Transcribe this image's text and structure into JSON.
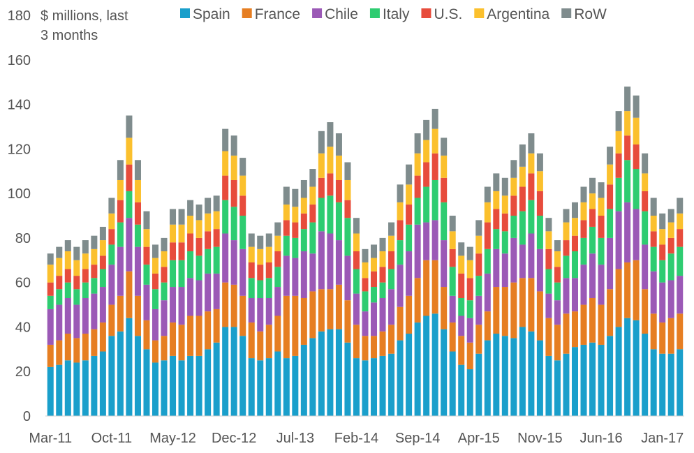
{
  "chart_data": {
    "type": "bar",
    "stacked": true,
    "unit_label": "$ millions, last 3 months",
    "y_range": [
      0,
      180
    ],
    "y_ticks": [
      0,
      20,
      40,
      60,
      80,
      100,
      120,
      140,
      160,
      180
    ],
    "grid": false,
    "legend_position": "top",
    "x_tick_labels": [
      {
        "index": 0,
        "label": "Mar-11"
      },
      {
        "index": 7,
        "label": "Oct-11"
      },
      {
        "index": 14,
        "label": "May-12"
      },
      {
        "index": 21,
        "label": "Dec-12"
      },
      {
        "index": 28,
        "label": "Jul-13"
      },
      {
        "index": 35,
        "label": "Feb-14"
      },
      {
        "index": 42,
        "label": "Sep-14"
      },
      {
        "index": 49,
        "label": "Apr-15"
      },
      {
        "index": 56,
        "label": "Nov-15"
      },
      {
        "index": 63,
        "label": "Jun-16"
      },
      {
        "index": 70,
        "label": "Jan-17"
      }
    ],
    "series": [
      {
        "name": "Spain",
        "color": "#1a9fcb",
        "values": [
          22,
          23,
          25,
          24,
          25,
          27,
          29,
          36,
          38,
          44,
          36,
          30,
          24,
          25,
          27,
          25,
          27,
          27,
          30,
          33,
          40,
          40,
          36,
          26,
          25,
          26,
          29,
          26,
          27,
          32,
          35,
          38,
          39,
          39,
          33,
          26,
          25,
          26,
          27,
          28,
          34,
          37,
          42,
          45,
          46,
          39,
          29,
          23,
          21,
          28,
          34,
          37,
          36,
          35,
          40,
          38,
          34,
          27,
          25,
          28,
          31,
          32,
          33,
          32,
          36,
          40,
          44,
          43,
          37,
          30,
          28,
          28,
          30
        ]
      },
      {
        "name": "France",
        "color": "#e67e22",
        "values": [
          10,
          11,
          12,
          11,
          12,
          12,
          13,
          14,
          16,
          21,
          18,
          13,
          10,
          11,
          15,
          16,
          18,
          18,
          17,
          15,
          20,
          19,
          18,
          16,
          13,
          15,
          16,
          28,
          27,
          21,
          21,
          19,
          18,
          20,
          19,
          15,
          11,
          10,
          11,
          13,
          15,
          17,
          20,
          25,
          24,
          19,
          13,
          13,
          12,
          13,
          13,
          21,
          22,
          25,
          22,
          24,
          22,
          17,
          16,
          18,
          16,
          18,
          20,
          18,
          21,
          26,
          25,
          27,
          20,
          16,
          14,
          16,
          16
        ]
      },
      {
        "name": "Chile",
        "color": "#9b59b6",
        "values": [
          16,
          16,
          16,
          15,
          16,
          16,
          16,
          18,
          22,
          24,
          22,
          16,
          14,
          16,
          16,
          17,
          17,
          16,
          17,
          16,
          22,
          20,
          21,
          11,
          15,
          12,
          13,
          18,
          17,
          21,
          17,
          26,
          25,
          20,
          20,
          14,
          11,
          15,
          15,
          16,
          19,
          20,
          24,
          17,
          18,
          21,
          12,
          9,
          11,
          13,
          17,
          17,
          15,
          20,
          15,
          20,
          19,
          11,
          11,
          16,
          15,
          18,
          20,
          18,
          23,
          26,
          27,
          23,
          20,
          19,
          18,
          17,
          17
        ]
      },
      {
        "name": "Italy",
        "color": "#2ecc71",
        "values": [
          6,
          7,
          7,
          7,
          7,
          7,
          8,
          9,
          11,
          12,
          10,
          9,
          9,
          8,
          12,
          12,
          12,
          11,
          11,
          12,
          15,
          15,
          15,
          9,
          8,
          9,
          9,
          9,
          9,
          10,
          14,
          15,
          17,
          17,
          17,
          11,
          9,
          7,
          7,
          9,
          11,
          12,
          12,
          16,
          18,
          17,
          13,
          8,
          8,
          9,
          11,
          9,
          10,
          10,
          15,
          15,
          15,
          11,
          8,
          10,
          12,
          12,
          12,
          12,
          13,
          15,
          19,
          18,
          15,
          11,
          10,
          12,
          13
        ]
      },
      {
        "name": "U.S.",
        "color": "#e74c3c",
        "values": [
          6,
          6,
          6,
          6,
          6,
          6,
          6,
          7,
          10,
          12,
          10,
          8,
          7,
          7,
          8,
          8,
          8,
          8,
          8,
          8,
          11,
          12,
          9,
          7,
          7,
          7,
          7,
          7,
          7,
          7,
          8,
          9,
          10,
          10,
          8,
          8,
          6,
          7,
          7,
          8,
          9,
          9,
          10,
          11,
          12,
          11,
          8,
          11,
          10,
          10,
          12,
          9,
          8,
          9,
          11,
          12,
          11,
          9,
          7,
          7,
          7,
          8,
          8,
          10,
          11,
          11,
          11,
          11,
          9,
          7,
          7,
          7,
          8
        ]
      },
      {
        "name": "Argentina",
        "color": "#fbc02d",
        "values": [
          8,
          8,
          8,
          7,
          7,
          7,
          7,
          7,
          9,
          12,
          10,
          8,
          7,
          7,
          8,
          8,
          8,
          8,
          8,
          8,
          11,
          11,
          9,
          7,
          7,
          7,
          7,
          7,
          7,
          7,
          8,
          11,
          12,
          11,
          9,
          8,
          7,
          6,
          7,
          7,
          8,
          9,
          10,
          10,
          11,
          10,
          8,
          8,
          8,
          8,
          9,
          8,
          8,
          8,
          9,
          9,
          9,
          8,
          7,
          8,
          8,
          8,
          7,
          8,
          9,
          10,
          11,
          12,
          8,
          7,
          7,
          7,
          7
        ]
      },
      {
        "name": "RoW",
        "color": "#7f8c8d",
        "values": [
          5,
          5,
          5,
          6,
          6,
          6,
          6,
          7,
          9,
          10,
          9,
          8,
          6,
          6,
          7,
          7,
          7,
          7,
          7,
          7,
          10,
          9,
          8,
          6,
          6,
          6,
          6,
          8,
          8,
          8,
          8,
          10,
          11,
          10,
          8,
          7,
          6,
          6,
          6,
          6,
          8,
          9,
          9,
          9,
          9,
          8,
          7,
          6,
          6,
          7,
          7,
          8,
          8,
          8,
          10,
          9,
          8,
          6,
          5,
          6,
          7,
          7,
          7,
          7,
          8,
          9,
          11,
          10,
          9,
          8,
          7,
          6,
          7
        ]
      }
    ]
  }
}
